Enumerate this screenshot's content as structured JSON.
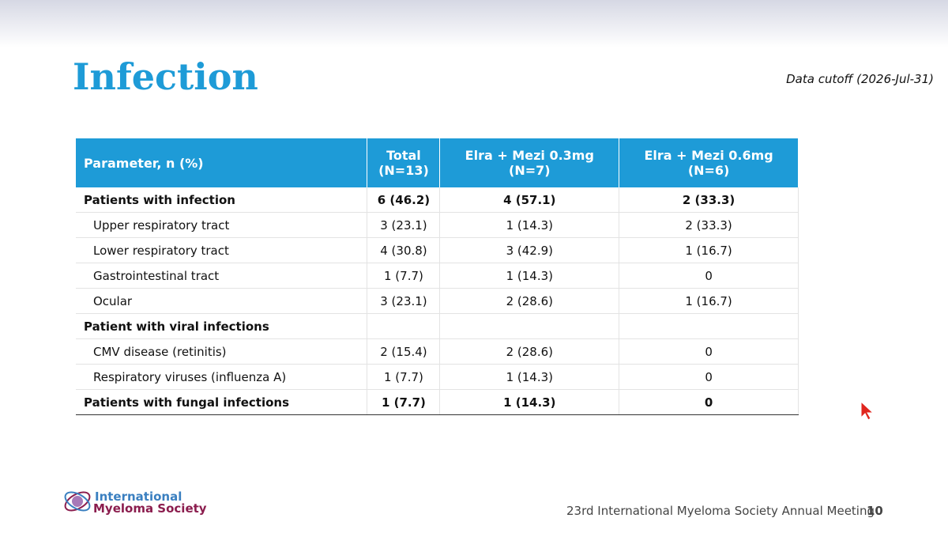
{
  "header": {
    "title": "Infection",
    "cutoff": "Data cutoff (2026-Jul-31)"
  },
  "table": {
    "columns": [
      [
        "Parameter, n (%)"
      ],
      [
        "Total",
        "(N=13)"
      ],
      [
        "Elra + Mezi 0.3mg",
        "(N=7)"
      ],
      [
        "Elra + Mezi 0.6mg",
        "(N=6)"
      ]
    ],
    "sections": [
      {
        "label": "Patients with infection",
        "values": [
          "6 (46.2)",
          "4 (57.1)",
          "2 (33.3)"
        ],
        "items": [
          {
            "label": "Upper respiratory tract",
            "values": [
              "3 (23.1)",
              "1 (14.3)",
              "2 (33.3)"
            ]
          },
          {
            "label": "Lower respiratory tract",
            "values": [
              "4 (30.8)",
              "3 (42.9)",
              "1 (16.7)"
            ]
          },
          {
            "label": "Gastrointestinal tract",
            "values": [
              "1 (7.7)",
              "1 (14.3)",
              "0"
            ]
          },
          {
            "label": "Ocular",
            "values": [
              "3 (23.1)",
              "2 (28.6)",
              "1 (16.7)"
            ]
          }
        ]
      },
      {
        "label": "Patient with viral infections",
        "items": [
          {
            "label": "CMV disease (retinitis)",
            "values": [
              "2 (15.4)",
              "2 (28.6)",
              "0"
            ]
          },
          {
            "label": "Respiratory viruses (influenza A)",
            "values": [
              "1 (7.7)",
              "1 (14.3)",
              "0"
            ]
          }
        ]
      },
      {
        "label": "Patients with fungal infections",
        "values": [
          "1 (7.7)",
          "1 (14.3)",
          "0"
        ],
        "items": []
      }
    ]
  },
  "footer": {
    "logo": [
      "International",
      "Myeloma Society"
    ],
    "meeting": "23rd International Myeloma Society Annual Meeting",
    "page": "10"
  }
}
